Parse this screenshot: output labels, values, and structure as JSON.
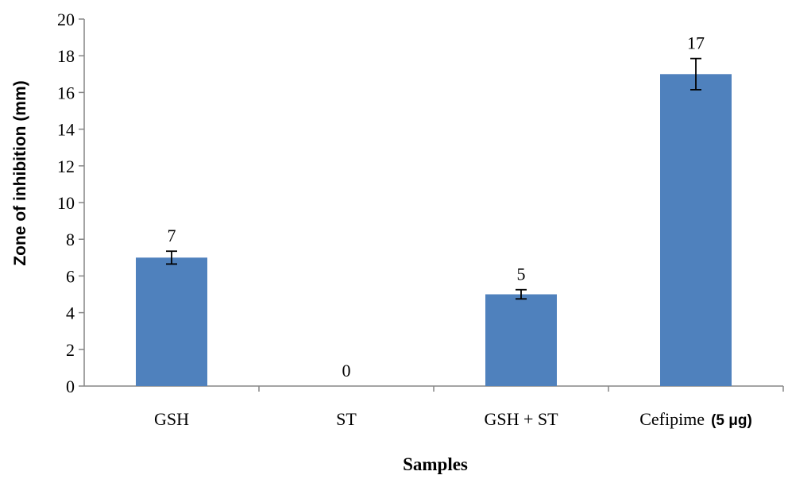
{
  "chart_data": {
    "type": "bar",
    "title": "",
    "xlabel": "Samples",
    "ylabel": "Zone of inhibition (mm)",
    "categories": [
      "GSH",
      "ST",
      "GSH + ST",
      "Cefipime"
    ],
    "category_suffixes": [
      "",
      "",
      "",
      "(5 μg)"
    ],
    "values": [
      7,
      0,
      5,
      17
    ],
    "data_labels": [
      "7",
      "0",
      "5",
      "17"
    ],
    "errors": [
      0.35,
      0,
      0.25,
      0.85
    ],
    "ylim": [
      0,
      20
    ],
    "yticks": [
      "0",
      "2",
      "4",
      "6",
      "8",
      "10",
      "12",
      "14",
      "16",
      "18",
      "20"
    ],
    "grid": false,
    "legend": "none",
    "bar_color": "#4f81bd"
  }
}
